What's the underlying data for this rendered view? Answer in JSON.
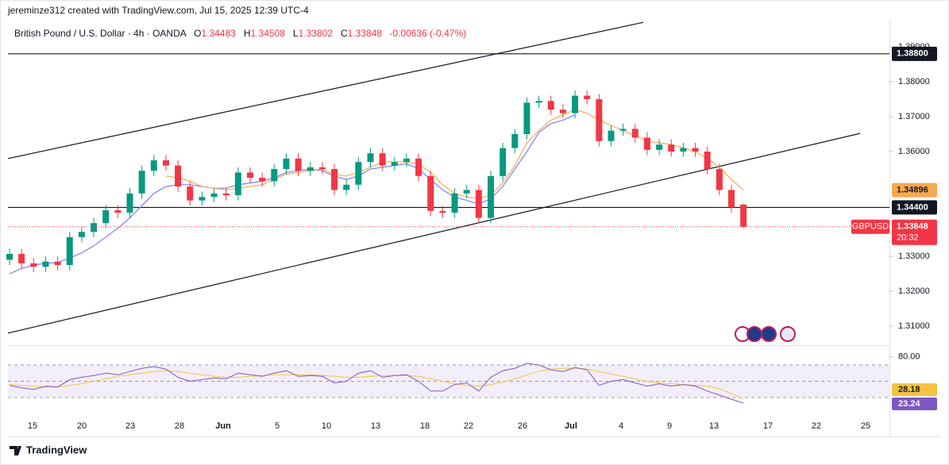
{
  "header": {
    "credit": "jereminze312 created with TradingView.com, Jul 15, 2025 12:39 UTC-4",
    "symbol": "British Pound / U.S. Dollar · 4h · OANDA",
    "change": "-0.00636 (-0.47%)",
    "ticker": "GBPUSD",
    "countdown": "20:32",
    "brand": "TradingView"
  },
  "chart_data": {
    "type": "candlestick",
    "date_labels": [
      "15",
      "20",
      "23",
      "28",
      "Jun",
      "5",
      "10",
      "13",
      "18",
      "22",
      "26",
      "Jul",
      "4",
      "9",
      "13",
      "17",
      "22",
      "25"
    ],
    "open": [
      1.329,
      1.3307,
      1.328,
      1.327,
      1.3285,
      1.3275,
      1.3355,
      1.337,
      1.3395,
      1.3432,
      1.3425,
      1.348,
      1.3545,
      1.3575,
      1.356,
      1.35,
      1.346,
      1.347,
      1.348,
      1.3475,
      1.354,
      1.3525,
      1.3515,
      1.355,
      1.358,
      1.3545,
      1.3555,
      1.355,
      1.349,
      1.3505,
      1.357,
      1.3595,
      1.356,
      1.357,
      1.358,
      1.353,
      1.343,
      1.3425,
      1.348,
      1.349,
      1.341,
      1.353,
      1.361,
      1.365,
      1.374,
      1.3745,
      1.372,
      1.371,
      1.376,
      1.375,
      1.363,
      1.366,
      1.3665,
      1.364,
      1.3605,
      1.362,
      1.36,
      1.361,
      1.36,
      1.355,
      1.349,
      1.34483
    ],
    "high": [
      1.3322,
      1.3322,
      1.3295,
      1.33,
      1.33,
      1.337,
      1.3385,
      1.341,
      1.3447,
      1.3447,
      1.3495,
      1.356,
      1.359,
      1.359,
      1.3575,
      1.3515,
      1.3485,
      1.3495,
      1.3495,
      1.3555,
      1.3555,
      1.354,
      1.3565,
      1.3595,
      1.3595,
      1.357,
      1.357,
      1.3565,
      1.352,
      1.3585,
      1.361,
      1.361,
      1.3585,
      1.3595,
      1.3595,
      1.3545,
      1.3445,
      1.3495,
      1.3505,
      1.3505,
      1.3545,
      1.3625,
      1.3665,
      1.3755,
      1.376,
      1.376,
      1.3735,
      1.3775,
      1.3775,
      1.3765,
      1.3675,
      1.368,
      1.368,
      1.3655,
      1.3635,
      1.3635,
      1.3625,
      1.3625,
      1.3615,
      1.3565,
      1.3505,
      1.34508
    ],
    "low": [
      1.3275,
      1.3265,
      1.3255,
      1.3255,
      1.326,
      1.326,
      1.334,
      1.3355,
      1.338,
      1.341,
      1.341,
      1.3465,
      1.353,
      1.3545,
      1.3485,
      1.3445,
      1.3445,
      1.3455,
      1.346,
      1.346,
      1.351,
      1.35,
      1.35,
      1.3535,
      1.353,
      1.353,
      1.3535,
      1.3475,
      1.3475,
      1.349,
      1.3555,
      1.3545,
      1.3545,
      1.3555,
      1.3515,
      1.3415,
      1.341,
      1.341,
      1.3465,
      1.3395,
      1.3395,
      1.3515,
      1.3595,
      1.3635,
      1.3725,
      1.3705,
      1.3695,
      1.3695,
      1.3735,
      1.3615,
      1.3615,
      1.3645,
      1.3625,
      1.359,
      1.359,
      1.3585,
      1.3585,
      1.3585,
      1.3535,
      1.3475,
      1.3425,
      1.33802
    ],
    "close": [
      1.3307,
      1.328,
      1.327,
      1.3285,
      1.3275,
      1.3355,
      1.337,
      1.3395,
      1.3432,
      1.3425,
      1.348,
      1.3545,
      1.3575,
      1.356,
      1.35,
      1.346,
      1.347,
      1.348,
      1.3475,
      1.354,
      1.3525,
      1.3515,
      1.355,
      1.358,
      1.3545,
      1.3555,
      1.355,
      1.349,
      1.3505,
      1.357,
      1.3595,
      1.356,
      1.357,
      1.358,
      1.353,
      1.343,
      1.3425,
      1.348,
      1.349,
      1.341,
      1.353,
      1.361,
      1.365,
      1.374,
      1.3745,
      1.372,
      1.371,
      1.376,
      1.375,
      1.363,
      1.366,
      1.3665,
      1.364,
      1.3605,
      1.362,
      1.36,
      1.361,
      1.36,
      1.355,
      1.349,
      1.344,
      1.33848
    ],
    "up_color": "#089981",
    "down_color": "#f23645",
    "series": [
      {
        "color": "#7e7ef0",
        "values": [
          1.325,
          1.3265,
          1.3275,
          1.328,
          1.3282,
          1.3295,
          1.331,
          1.333,
          1.3355,
          1.338,
          1.341,
          1.3445,
          1.348,
          1.35,
          1.3505,
          1.3505,
          1.35,
          1.3495,
          1.3495,
          1.3505,
          1.351,
          1.3515,
          1.3525,
          1.354,
          1.3545,
          1.355,
          1.3545,
          1.353,
          1.352,
          1.353,
          1.355,
          1.3555,
          1.356,
          1.3565,
          1.355,
          1.352,
          1.349,
          1.347,
          1.346,
          1.345,
          1.3465,
          1.35,
          1.355,
          1.36,
          1.3655,
          1.368,
          1.369,
          1.3705,
          null,
          null,
          null,
          null,
          null,
          null,
          null,
          null,
          null,
          null,
          null,
          null,
          null,
          null
        ]
      },
      {
        "color": "#f7a94f",
        "values": [
          null,
          null,
          null,
          null,
          null,
          null,
          null,
          null,
          null,
          null,
          null,
          null,
          null,
          1.353,
          1.3525,
          1.3515,
          1.35,
          1.3495,
          1.349,
          1.3495,
          1.35,
          1.3505,
          1.352,
          1.3535,
          1.354,
          1.3545,
          1.355,
          1.3535,
          1.353,
          1.354,
          1.3555,
          1.357,
          1.357,
          1.357,
          1.3565,
          1.354,
          1.3505,
          1.348,
          1.347,
          1.3465,
          1.3475,
          1.351,
          1.356,
          1.3625,
          1.366,
          1.369,
          1.3705,
          1.372,
          1.371,
          1.369,
          1.3675,
          1.366,
          1.3645,
          1.363,
          1.3625,
          1.362,
          1.361,
          1.36,
          1.358,
          1.3555,
          1.352,
          1.34896
        ]
      }
    ],
    "levels": [
      {
        "value": 1.388,
        "label": "1.38800"
      },
      {
        "value": 1.344,
        "label": "1.34400"
      }
    ],
    "channel": [
      {
        "start": 1.358,
        "end": 1.397
      },
      {
        "start": 1.308,
        "end": 1.3652
      }
    ],
    "ylim": [
      1.30455,
      1.39773
    ],
    "yticks": [
      {
        "value": 1.31,
        "label": "1.31000"
      },
      {
        "value": 1.32,
        "label": "1.32000"
      },
      {
        "value": 1.33,
        "label": "1.33000"
      },
      {
        "value": 1.36,
        "label": "1.36000"
      },
      {
        "value": 1.37,
        "label": "1.37000"
      },
      {
        "value": 1.38,
        "label": "1.38000"
      },
      {
        "value": 1.39,
        "label": "1.39000"
      }
    ],
    "rsi": {
      "values": [
        45,
        42,
        40,
        44,
        43,
        52,
        55,
        57,
        60,
        58,
        62,
        66,
        68,
        65,
        55,
        50,
        52,
        54,
        53,
        60,
        58,
        56,
        60,
        63,
        56,
        57,
        56,
        48,
        50,
        60,
        63,
        55,
        57,
        58,
        50,
        38,
        38,
        46,
        48,
        38,
        55,
        63,
        66,
        72,
        70,
        64,
        62,
        67,
        64,
        45,
        50,
        52,
        48,
        44,
        47,
        44,
        46,
        44,
        38,
        33,
        28,
        23.24
      ],
      "ma": [
        46,
        45,
        44,
        43,
        43,
        45,
        47,
        50,
        53,
        56,
        58,
        60,
        62,
        63,
        62,
        60,
        58,
        56,
        55,
        55,
        56,
        57,
        58,
        58,
        58,
        58,
        57,
        56,
        55,
        55,
        56,
        57,
        57,
        57,
        56,
        53,
        50,
        47,
        45,
        44,
        46,
        49,
        53,
        58,
        62,
        65,
        66,
        66,
        65,
        62,
        59,
        56,
        53,
        50,
        48,
        47,
        46,
        45,
        44,
        41,
        35,
        28.18
      ],
      "color": "#7e57c2",
      "ma_color": "#f5c242",
      "levels": [
        70,
        50,
        30
      ],
      "ylim": [
        6.6,
        92.4
      ],
      "yticks": [
        {
          "value": 80,
          "label": "80.00"
        }
      ]
    }
  }
}
